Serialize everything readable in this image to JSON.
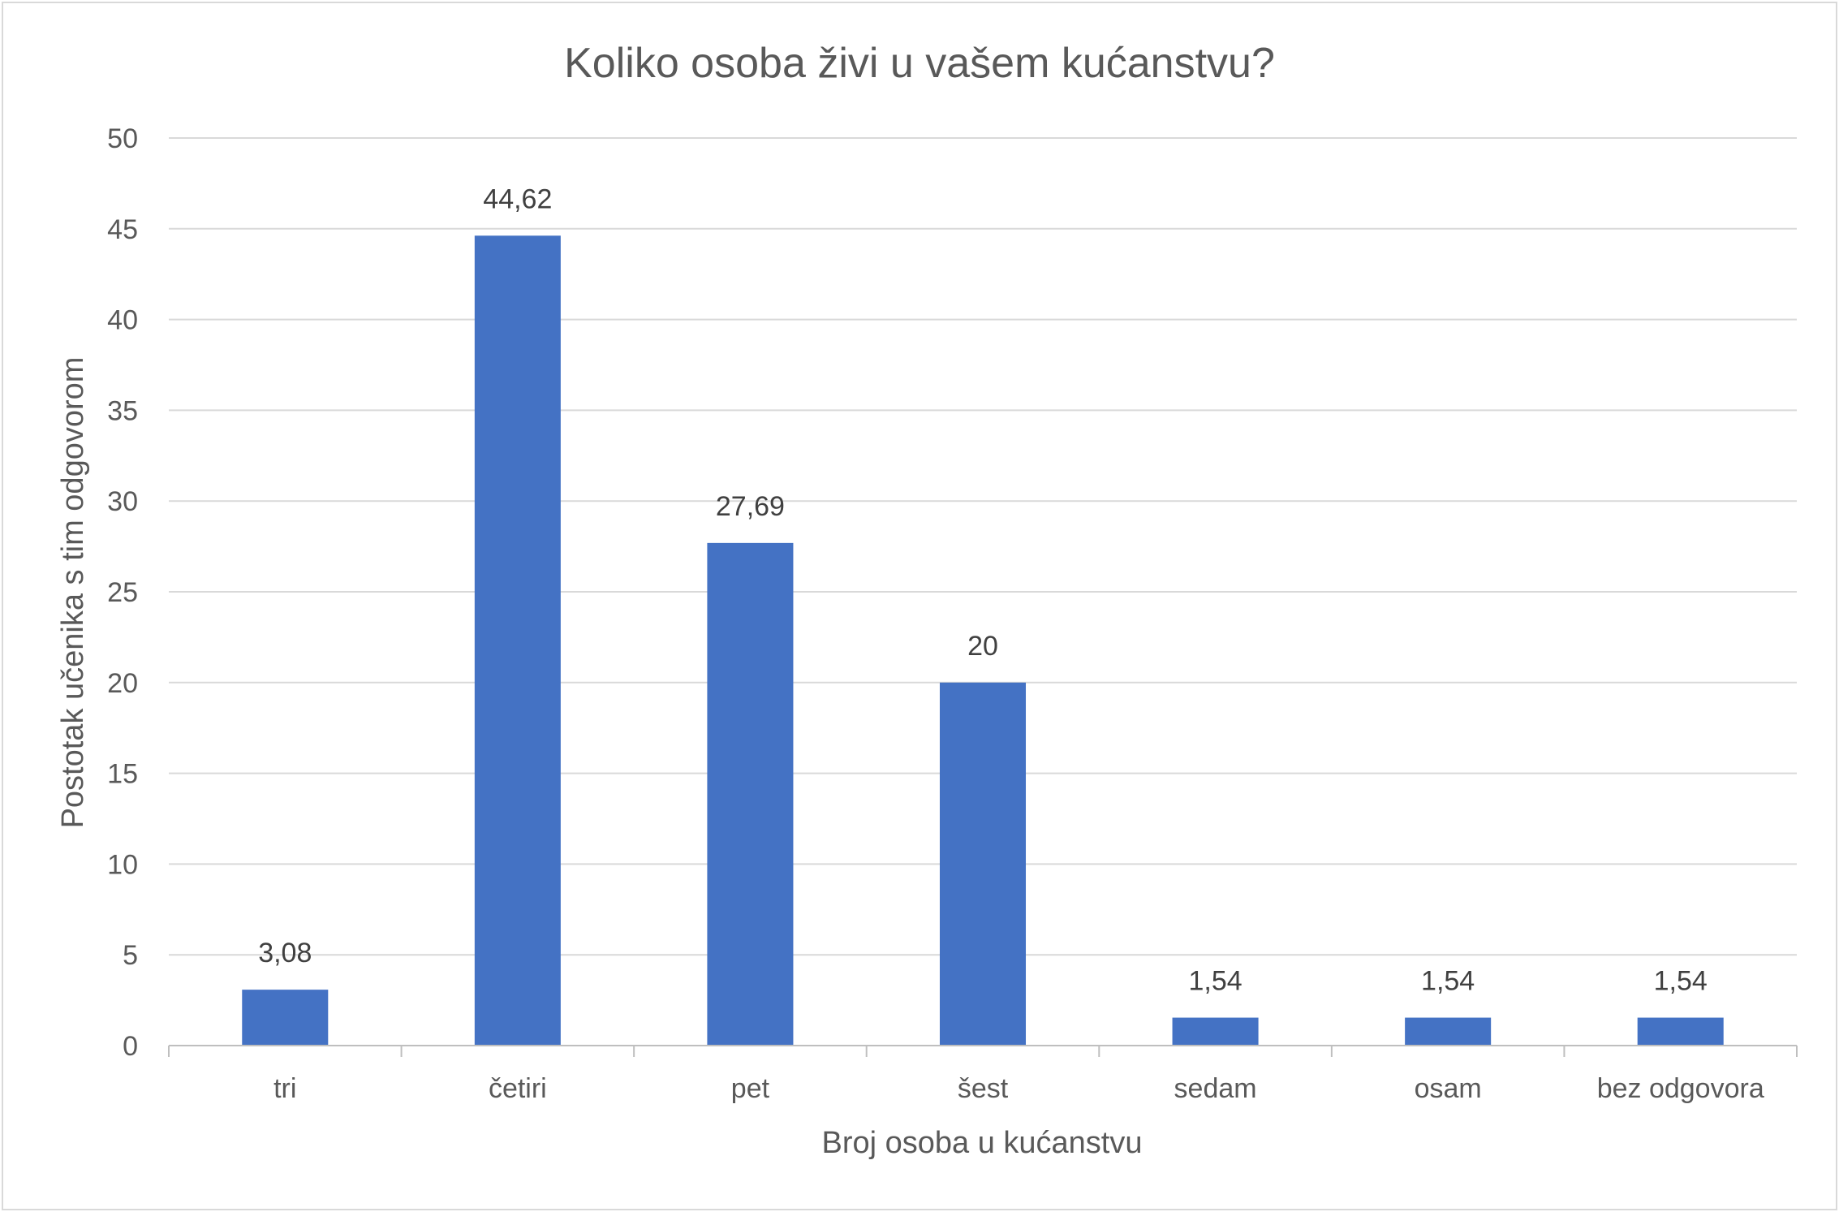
{
  "chart_data": {
    "type": "bar",
    "title": "Koliko osoba živi u vašem kućanstvu?",
    "xlabel": "Broj osoba u kućanstvu",
    "ylabel": "Postotak učenika s tim odgovorom",
    "categories": [
      "tri",
      "četiri",
      "pet",
      "šest",
      "sedam",
      "osam",
      "bez odgovora"
    ],
    "values": [
      3.08,
      44.62,
      27.69,
      20,
      1.54,
      1.54,
      1.54
    ],
    "data_labels": [
      "3,08",
      "44,62",
      "27,69",
      "20",
      "1,54",
      "1,54",
      "1,54"
    ],
    "ylim": [
      0,
      50
    ],
    "yticks": [
      0,
      5,
      10,
      15,
      20,
      25,
      30,
      35,
      40,
      45,
      50
    ],
    "grid": true,
    "legend": "none",
    "bar_color": "#4472c4"
  }
}
